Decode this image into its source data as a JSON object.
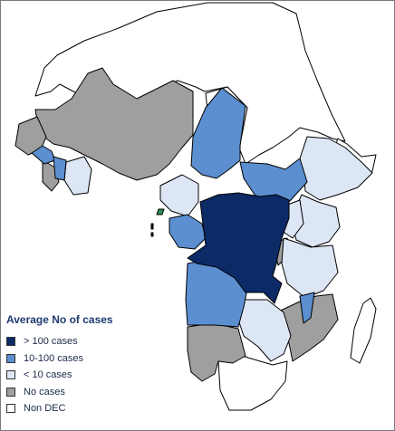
{
  "legend": {
    "title": "Average No of cases",
    "categories": [
      {
        "key": "high",
        "label": "> 100 cases",
        "color": "#0b2a66"
      },
      {
        "key": "mid",
        "label": "10-100 cases",
        "color": "#5b8fd0"
      },
      {
        "key": "low",
        "label": "< 10 cases",
        "color": "#dde6f5"
      },
      {
        "key": "none",
        "label": "No cases",
        "color": "#9f9f9f"
      },
      {
        "key": "nondec",
        "label": "Non DEC",
        "color": "#ffffff"
      }
    ]
  }
}
